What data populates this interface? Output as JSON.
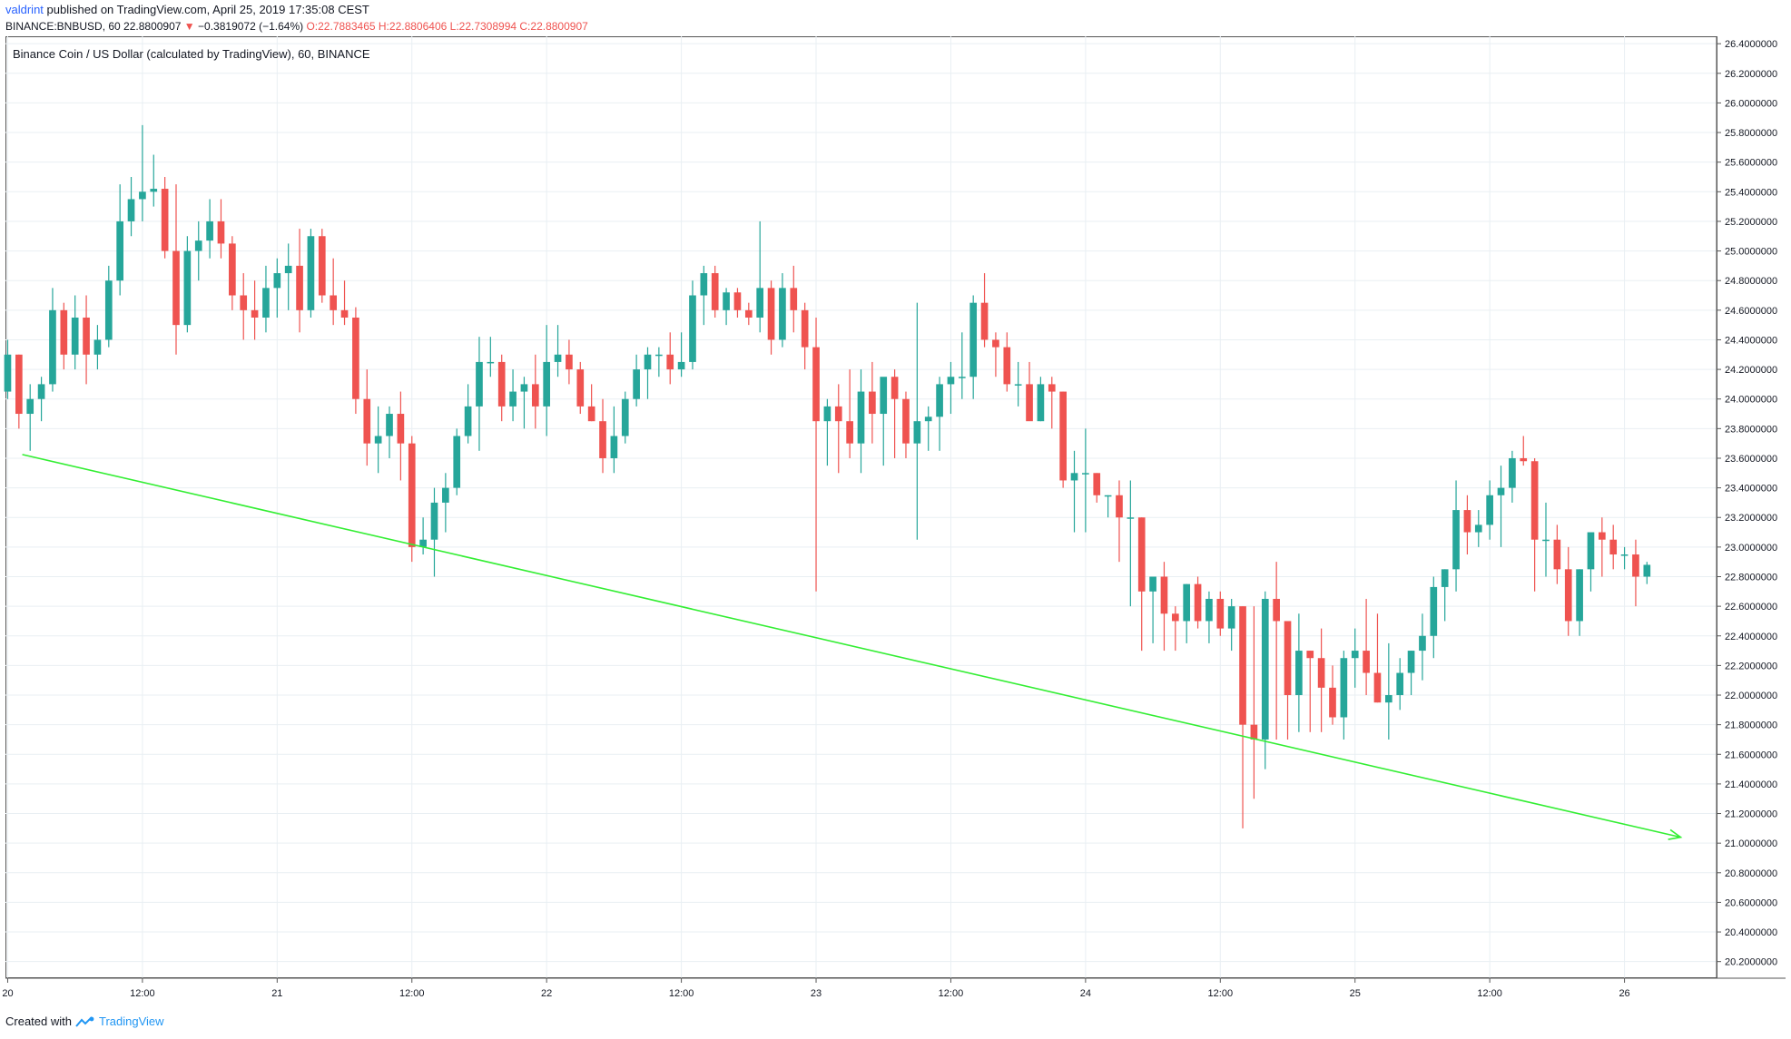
{
  "header": {
    "author": "valdrint",
    "published": "published on TradingView.com, April 25, 2019 17:35:08 CEST",
    "symbol": "BINANCE:BNBUSD, 60",
    "last": "22.8800907",
    "change": "−0.3819072 (−1.64%)",
    "open": "O:22.7883465",
    "high": "H:22.8806406",
    "low": "L:22.7308994",
    "close": "C:22.8800907"
  },
  "chart_title": "Binance Coin / US Dollar (calculated by TradingView), 60, BINANCE",
  "footer": {
    "created_with": "Created with",
    "brand": "TradingView"
  },
  "colors": {
    "up": "#26a69a",
    "down": "#ef5350",
    "trendline": "#33ee33",
    "grid": "#e9eff3",
    "axis": "#555555"
  },
  "chart_data": {
    "type": "candlestick",
    "y_range": [
      20.1,
      26.45
    ],
    "y_ticks": [
      "20.2000000",
      "20.4000000",
      "20.6000000",
      "20.8000000",
      "21.0000000",
      "21.2000000",
      "21.4000000",
      "21.6000000",
      "21.8000000",
      "22.0000000",
      "22.2000000",
      "22.4000000",
      "22.6000000",
      "22.8000000",
      "23.0000000",
      "23.2000000",
      "23.4000000",
      "23.6000000",
      "23.8000000",
      "24.0000000",
      "24.2000000",
      "24.4000000",
      "24.6000000",
      "24.8000000",
      "25.0000000",
      "25.2000000",
      "25.4000000",
      "25.6000000",
      "25.8000000",
      "26.0000000",
      "26.2000000",
      "26.4000000"
    ],
    "x_ticks": [
      "20",
      "12:00",
      "21",
      "12:00",
      "22",
      "12:00",
      "23",
      "12:00",
      "24",
      "12:00",
      "25",
      "12:00",
      "26"
    ],
    "x_tick_hours": [
      24,
      36,
      48,
      60,
      72,
      84,
      96,
      108,
      120,
      132,
      144,
      156,
      168
    ],
    "x_hour_range": [
      23.8,
      176.2
    ],
    "candles_ohlc": [
      [
        24.05,
        24.4,
        24.0,
        24.3
      ],
      [
        24.3,
        24.3,
        23.8,
        23.9
      ],
      [
        23.9,
        24.1,
        23.65,
        24.0
      ],
      [
        24.0,
        24.15,
        23.85,
        24.1
      ],
      [
        24.1,
        24.75,
        24.05,
        24.6
      ],
      [
        24.6,
        24.65,
        24.2,
        24.3
      ],
      [
        24.3,
        24.7,
        24.2,
        24.55
      ],
      [
        24.55,
        24.7,
        24.1,
        24.3
      ],
      [
        24.3,
        24.5,
        24.2,
        24.4
      ],
      [
        24.4,
        24.9,
        24.35,
        24.8
      ],
      [
        24.8,
        25.45,
        24.7,
        25.2
      ],
      [
        25.2,
        25.5,
        25.1,
        25.35
      ],
      [
        25.35,
        25.85,
        25.2,
        25.4
      ],
      [
        25.4,
        25.65,
        25.3,
        25.42
      ],
      [
        25.42,
        25.5,
        24.95,
        25.0
      ],
      [
        25.0,
        25.45,
        24.3,
        24.5
      ],
      [
        24.5,
        25.1,
        24.45,
        25.0
      ],
      [
        25.0,
        25.2,
        24.8,
        25.07
      ],
      [
        25.07,
        25.35,
        24.95,
        25.2
      ],
      [
        25.2,
        25.35,
        24.95,
        25.05
      ],
      [
        25.05,
        25.1,
        24.6,
        24.7
      ],
      [
        24.7,
        24.85,
        24.4,
        24.6
      ],
      [
        24.6,
        24.8,
        24.4,
        24.55
      ],
      [
        24.55,
        24.9,
        24.45,
        24.75
      ],
      [
        24.75,
        24.95,
        24.55,
        24.85
      ],
      [
        24.85,
        25.05,
        24.6,
        24.9
      ],
      [
        24.9,
        25.15,
        24.45,
        24.6
      ],
      [
        24.6,
        25.15,
        24.55,
        25.1
      ],
      [
        25.1,
        25.15,
        24.65,
        24.7
      ],
      [
        24.7,
        24.95,
        24.5,
        24.6
      ],
      [
        24.6,
        24.8,
        24.5,
        24.55
      ],
      [
        24.55,
        24.62,
        23.9,
        24.0
      ],
      [
        24.0,
        24.2,
        23.55,
        23.7
      ],
      [
        23.7,
        23.95,
        23.5,
        23.75
      ],
      [
        23.75,
        23.95,
        23.6,
        23.9
      ],
      [
        23.9,
        24.05,
        23.45,
        23.7
      ],
      [
        23.7,
        23.75,
        22.9,
        23.0
      ],
      [
        23.0,
        23.2,
        22.95,
        23.05
      ],
      [
        23.05,
        23.4,
        22.8,
        23.3
      ],
      [
        23.3,
        23.5,
        23.1,
        23.4
      ],
      [
        23.4,
        23.8,
        23.35,
        23.75
      ],
      [
        23.75,
        24.1,
        23.7,
        23.95
      ],
      [
        23.95,
        24.42,
        23.65,
        24.25
      ],
      [
        24.25,
        24.42,
        24.15,
        24.25
      ],
      [
        24.25,
        24.3,
        23.85,
        23.95
      ],
      [
        23.95,
        24.2,
        23.85,
        24.05
      ],
      [
        24.05,
        24.15,
        23.8,
        24.1
      ],
      [
        24.1,
        24.3,
        23.8,
        23.95
      ],
      [
        23.95,
        24.5,
        23.75,
        24.25
      ],
      [
        24.25,
        24.5,
        24.15,
        24.3
      ],
      [
        24.3,
        24.4,
        24.1,
        24.2
      ],
      [
        24.2,
        24.25,
        23.9,
        23.95
      ],
      [
        23.95,
        24.1,
        23.85,
        23.85
      ],
      [
        23.85,
        24.0,
        23.5,
        23.6
      ],
      [
        23.6,
        23.95,
        23.5,
        23.75
      ],
      [
        23.75,
        24.05,
        23.7,
        24.0
      ],
      [
        24.0,
        24.3,
        23.95,
        24.2
      ],
      [
        24.2,
        24.35,
        24.0,
        24.3
      ],
      [
        24.3,
        24.35,
        24.15,
        24.3
      ],
      [
        24.3,
        24.45,
        24.1,
        24.2
      ],
      [
        24.2,
        24.45,
        24.15,
        24.25
      ],
      [
        24.25,
        24.8,
        24.2,
        24.7
      ],
      [
        24.7,
        24.9,
        24.5,
        24.85
      ],
      [
        24.85,
        24.9,
        24.55,
        24.6
      ],
      [
        24.6,
        24.75,
        24.5,
        24.72
      ],
      [
        24.72,
        24.75,
        24.55,
        24.6
      ],
      [
        24.6,
        24.65,
        24.5,
        24.55
      ],
      [
        24.55,
        25.2,
        24.45,
        24.75
      ],
      [
        24.75,
        24.8,
        24.3,
        24.4
      ],
      [
        24.4,
        24.85,
        24.35,
        24.75
      ],
      [
        24.75,
        24.9,
        24.45,
        24.6
      ],
      [
        24.6,
        24.65,
        24.2,
        24.35
      ],
      [
        24.35,
        24.55,
        22.7,
        23.85
      ],
      [
        23.85,
        24.0,
        23.55,
        23.95
      ],
      [
        23.95,
        24.1,
        23.5,
        23.85
      ],
      [
        23.85,
        24.2,
        23.6,
        23.7
      ],
      [
        23.7,
        24.2,
        23.5,
        24.05
      ],
      [
        24.05,
        24.25,
        23.7,
        23.9
      ],
      [
        23.9,
        24.0,
        23.55,
        24.15
      ],
      [
        24.15,
        24.2,
        23.6,
        24.0
      ],
      [
        24.0,
        24.05,
        23.6,
        23.7
      ],
      [
        23.7,
        24.65,
        23.05,
        23.85
      ],
      [
        23.85,
        23.95,
        23.65,
        23.88
      ],
      [
        23.88,
        24.15,
        23.65,
        24.1
      ],
      [
        24.1,
        24.25,
        23.9,
        24.15
      ],
      [
        24.15,
        24.45,
        24.0,
        24.15
      ],
      [
        24.15,
        24.7,
        24.0,
        24.65
      ],
      [
        24.65,
        24.85,
        24.35,
        24.4
      ],
      [
        24.4,
        24.45,
        24.15,
        24.35
      ],
      [
        24.35,
        24.45,
        24.05,
        24.1
      ],
      [
        24.1,
        24.25,
        23.95,
        24.1
      ],
      [
        24.1,
        24.25,
        23.9,
        23.85
      ],
      [
        23.85,
        24.15,
        23.85,
        24.1
      ],
      [
        24.1,
        24.15,
        23.8,
        24.05
      ],
      [
        24.05,
        24.05,
        23.4,
        23.45
      ],
      [
        23.45,
        23.65,
        23.1,
        23.5
      ],
      [
        23.5,
        23.8,
        23.1,
        23.5
      ],
      [
        23.5,
        23.5,
        23.3,
        23.35
      ],
      [
        23.35,
        23.35,
        23.2,
        23.35
      ],
      [
        23.35,
        23.45,
        22.9,
        23.2
      ],
      [
        23.2,
        23.45,
        22.6,
        23.2
      ],
      [
        23.2,
        23.2,
        22.3,
        22.7
      ],
      [
        22.7,
        22.8,
        22.35,
        22.8
      ],
      [
        22.8,
        22.9,
        22.3,
        22.55
      ],
      [
        22.55,
        22.6,
        22.3,
        22.5
      ],
      [
        22.5,
        22.75,
        22.35,
        22.75
      ],
      [
        22.75,
        22.8,
        22.45,
        22.5
      ],
      [
        22.5,
        22.7,
        22.35,
        22.65
      ],
      [
        22.65,
        22.7,
        22.4,
        22.45
      ],
      [
        22.45,
        22.65,
        22.3,
        22.6
      ],
      [
        22.6,
        22.6,
        21.1,
        21.8
      ],
      [
        21.8,
        22.6,
        21.3,
        21.7
      ],
      [
        21.7,
        22.7,
        21.5,
        22.65
      ],
      [
        22.65,
        22.9,
        21.7,
        22.5
      ],
      [
        22.5,
        22.5,
        21.7,
        22.0
      ],
      [
        22.0,
        22.55,
        21.75,
        22.3
      ],
      [
        22.3,
        22.3,
        21.75,
        22.25
      ],
      [
        22.25,
        22.45,
        21.75,
        22.05
      ],
      [
        22.05,
        22.2,
        21.8,
        21.85
      ],
      [
        21.85,
        22.3,
        21.7,
        22.25
      ],
      [
        22.25,
        22.45,
        22.05,
        22.3
      ],
      [
        22.3,
        22.65,
        22.0,
        22.15
      ],
      [
        22.15,
        22.55,
        21.95,
        21.95
      ],
      [
        21.95,
        22.35,
        21.7,
        22.0
      ],
      [
        22.0,
        22.25,
        21.9,
        22.15
      ],
      [
        22.15,
        22.3,
        22.0,
        22.3
      ],
      [
        22.3,
        22.55,
        22.1,
        22.4
      ],
      [
        22.4,
        22.8,
        22.25,
        22.73
      ],
      [
        22.73,
        22.85,
        22.5,
        22.85
      ],
      [
        22.85,
        23.45,
        22.7,
        23.25
      ],
      [
        23.25,
        23.35,
        22.95,
        23.1
      ],
      [
        23.1,
        23.25,
        23.0,
        23.15
      ],
      [
        23.15,
        23.45,
        23.05,
        23.35
      ],
      [
        23.35,
        23.55,
        23.0,
        23.4
      ],
      [
        23.4,
        23.65,
        23.3,
        23.6
      ],
      [
        23.6,
        23.75,
        23.55,
        23.58
      ],
      [
        23.58,
        23.6,
        22.7,
        23.05
      ],
      [
        23.05,
        23.3,
        22.8,
        23.05
      ],
      [
        23.05,
        23.15,
        22.75,
        22.85
      ],
      [
        22.85,
        23.0,
        22.4,
        22.5
      ],
      [
        22.5,
        22.85,
        22.4,
        22.85
      ],
      [
        22.85,
        23.0,
        22.7,
        23.1
      ],
      [
        23.1,
        23.2,
        22.8,
        23.05
      ],
      [
        23.05,
        23.15,
        22.85,
        22.95
      ],
      [
        22.95,
        23.0,
        22.85,
        22.95
      ],
      [
        22.95,
        23.05,
        22.6,
        22.8
      ],
      [
        22.8,
        22.9,
        22.75,
        22.88
      ]
    ],
    "trendline": {
      "start": {
        "hour": 25.3,
        "price": 23.625
      },
      "end": {
        "hour": 173.0,
        "price": 21.04
      },
      "arrow": true
    }
  }
}
